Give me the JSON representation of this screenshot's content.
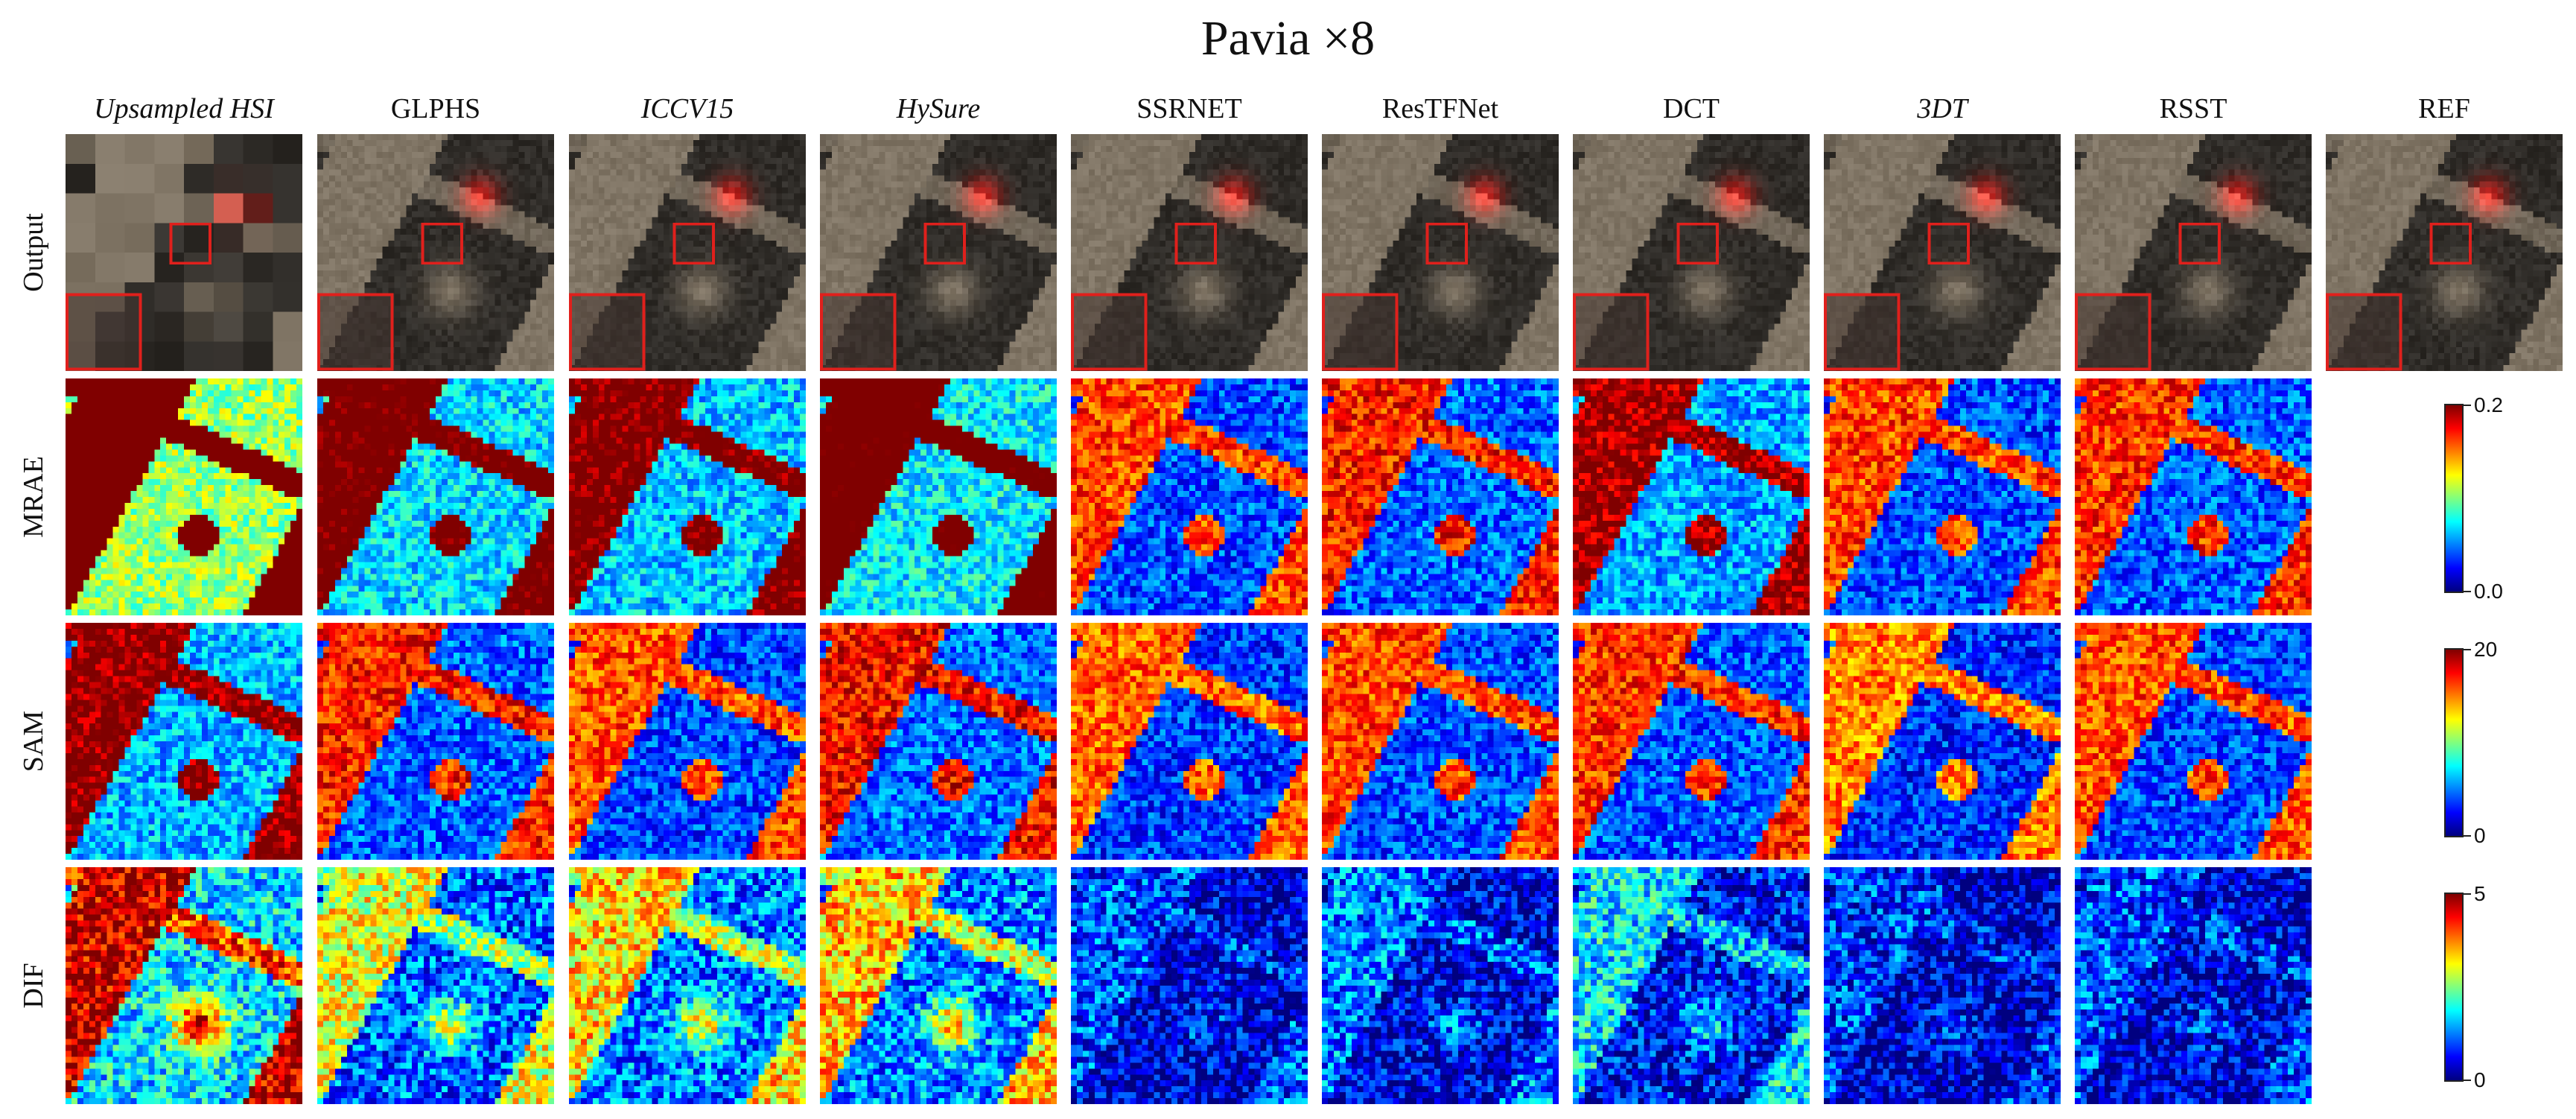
{
  "title": "Pavia ×8",
  "methods": [
    "Upsampled HSI",
    "GLPHS",
    "ICCV15",
    "HySure",
    "SSRNET",
    "ResTFNet",
    "DCT",
    "3DT",
    "RSST",
    "REF"
  ],
  "rows": [
    "Output",
    "MRAE",
    "SAM",
    "DIF"
  ],
  "colorbars": [
    {
      "row": "MRAE",
      "max": "0.2",
      "min": "0.0"
    },
    {
      "row": "SAM",
      "max": "20",
      "min": "0"
    },
    {
      "row": "DIF",
      "max": "5",
      "min": "0"
    }
  ],
  "colors": {
    "zoom_box": "#e0201c",
    "jet": [
      "#00007f",
      "#0000ff",
      "#007fff",
      "#00ffff",
      "#7fff7f",
      "#ffff00",
      "#ff7f00",
      "#ff0000",
      "#7f0000"
    ]
  }
}
